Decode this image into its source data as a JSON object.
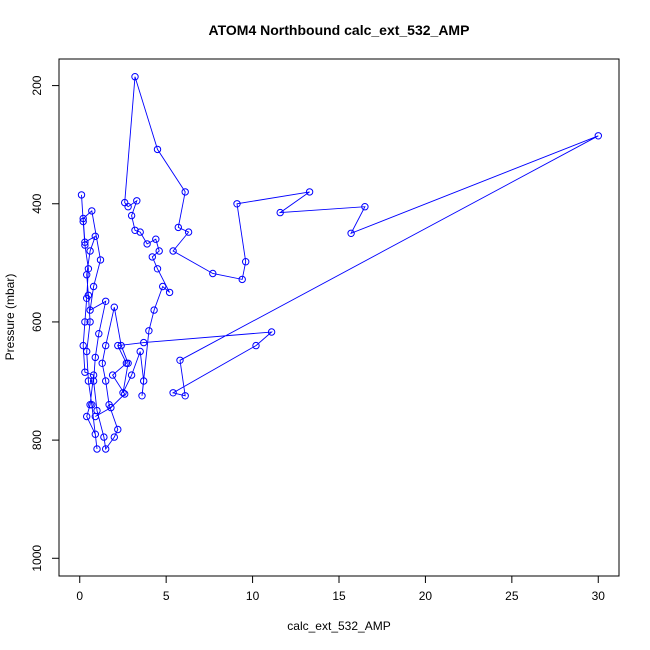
{
  "chart_data": {
    "type": "line",
    "title": "ATOM4 Northbound calc_ext_532_AMP",
    "xlabel": "calc_ext_532_AMP",
    "ylabel": "Pressure (mbar)",
    "xlim": [
      -1.2,
      31.2
    ],
    "ylim": [
      1030,
      155
    ],
    "y_reversed": true,
    "x_ticks": [
      0,
      5,
      10,
      15,
      20,
      25,
      30
    ],
    "y_ticks": [
      200,
      400,
      600,
      800,
      1000
    ],
    "grid": false,
    "legend": "none",
    "color": "#0000ff",
    "series": [
      {
        "points": [
          [
            0.1,
            385
          ],
          [
            0.2,
            430
          ],
          [
            0.3,
            470
          ],
          [
            0.5,
            510
          ],
          [
            0.4,
            560
          ],
          [
            0.3,
            600
          ],
          [
            0.2,
            640
          ],
          [
            0.3,
            685
          ],
          [
            0.8,
            690
          ],
          [
            0.6,
            740
          ],
          [
            0.4,
            760
          ],
          [
            0.9,
            790
          ],
          [
            1.0,
            815
          ],
          [
            0.7,
            740
          ],
          [
            0.5,
            700
          ],
          [
            0.4,
            650
          ],
          [
            0.6,
            600
          ],
          [
            0.5,
            555
          ],
          [
            0.4,
            520
          ],
          [
            0.6,
            480
          ],
          [
            0.9,
            455
          ],
          [
            0.3,
            465
          ],
          [
            0.2,
            425
          ],
          [
            0.7,
            412
          ],
          [
            1.2,
            495
          ],
          [
            0.8,
            540
          ],
          [
            0.6,
            580
          ],
          [
            1.5,
            565
          ],
          [
            1.1,
            620
          ],
          [
            0.9,
            660
          ],
          [
            0.8,
            700
          ],
          [
            1.0,
            750
          ],
          [
            1.4,
            795
          ],
          [
            1.5,
            815
          ],
          [
            2.0,
            795
          ],
          [
            2.2,
            782
          ],
          [
            1.7,
            740
          ],
          [
            1.5,
            700
          ],
          [
            1.3,
            670
          ],
          [
            1.5,
            640
          ],
          [
            2.0,
            575
          ],
          [
            2.4,
            640
          ],
          [
            2.8,
            670
          ],
          [
            2.5,
            720
          ],
          [
            3.0,
            690
          ],
          [
            3.5,
            650
          ],
          [
            3.7,
            700
          ],
          [
            3.6,
            725
          ],
          [
            4.0,
            615
          ],
          [
            4.3,
            580
          ],
          [
            4.8,
            540
          ],
          [
            5.2,
            550
          ],
          [
            4.5,
            510
          ],
          [
            4.2,
            490
          ],
          [
            4.6,
            480
          ],
          [
            4.4,
            460
          ],
          [
            3.9,
            468
          ],
          [
            3.5,
            448
          ],
          [
            3.2,
            445
          ],
          [
            3.0,
            420
          ],
          [
            3.3,
            395
          ],
          [
            2.8,
            405
          ],
          [
            2.6,
            398
          ],
          [
            3.2,
            185
          ],
          [
            4.5,
            308
          ],
          [
            6.1,
            380
          ],
          [
            5.7,
            440
          ],
          [
            6.3,
            448
          ],
          [
            5.4,
            480
          ],
          [
            7.7,
            518
          ],
          [
            9.4,
            528
          ],
          [
            9.6,
            498
          ],
          [
            9.1,
            400
          ],
          [
            13.3,
            380
          ],
          [
            11.6,
            415
          ],
          [
            16.5,
            405
          ],
          [
            15.7,
            450
          ],
          [
            30.0,
            285
          ],
          [
            5.8,
            665
          ],
          [
            6.1,
            725
          ],
          [
            5.4,
            720
          ],
          [
            10.2,
            640
          ],
          [
            11.1,
            617
          ],
          [
            3.7,
            635
          ],
          [
            2.2,
            640
          ],
          [
            2.7,
            670
          ],
          [
            1.9,
            690
          ],
          [
            2.6,
            722
          ],
          [
            1.8,
            745
          ],
          [
            0.9,
            760
          ]
        ]
      }
    ]
  }
}
